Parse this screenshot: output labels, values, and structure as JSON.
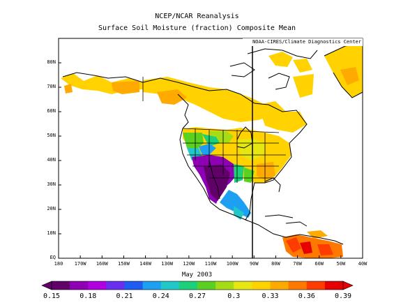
{
  "title": "NCEP/NCAR Reanalysis",
  "subtitle": "Surface Soil Moisture (fraction) Composite Mean",
  "credit": "NOAA-CIRES/Climate Diagnostics Center",
  "caption": "May 2003",
  "y_ticks": [
    "EQ",
    "10N",
    "20N",
    "30N",
    "40N",
    "50N",
    "60N",
    "70N",
    "80N"
  ],
  "x_ticks": [
    "180",
    "170W",
    "160W",
    "150W",
    "140W",
    "130W",
    "120W",
    "110W",
    "100W",
    "90W",
    "80W",
    "70W",
    "60W",
    "50W",
    "40W"
  ],
  "colorbar": {
    "labels": [
      "0.15",
      "0.18",
      "0.21",
      "0.24",
      "0.27",
      "0.3",
      "0.33",
      "0.36",
      "0.39"
    ],
    "colors": [
      "#62006a",
      "#8e00b4",
      "#b000e0",
      "#6a2ef0",
      "#1e5cf2",
      "#1ea0f2",
      "#22c8c8",
      "#1cd07a",
      "#5ad020",
      "#a6dc14",
      "#e6e610",
      "#ffd200",
      "#ffaa00",
      "#ff7800",
      "#ff3c00",
      "#e60000"
    ]
  }
}
